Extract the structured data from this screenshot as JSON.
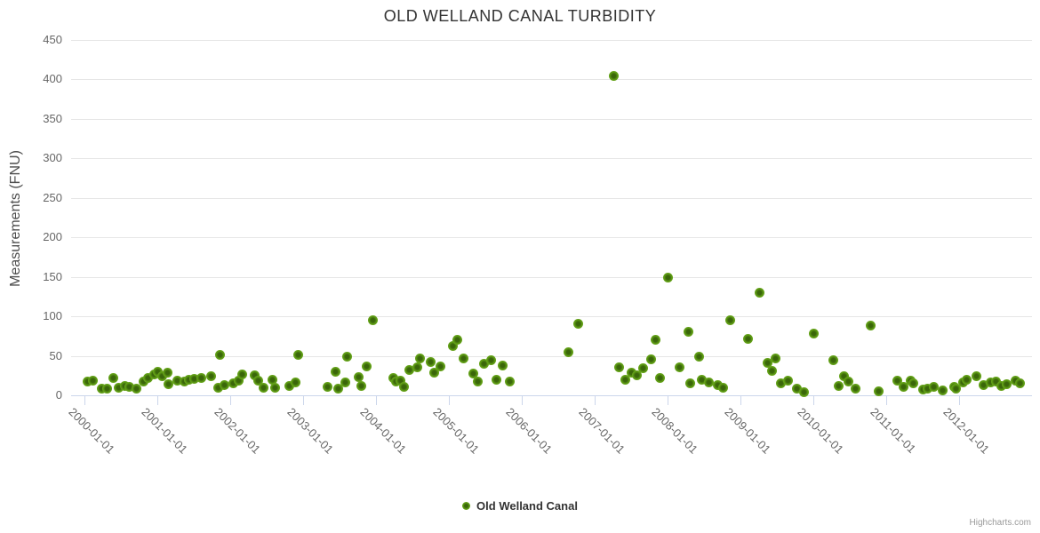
{
  "title": "OLD WELLAND CANAL TURBIDITY",
  "y_axis": {
    "title": "Measurements (FNU)",
    "ticks": [
      0,
      50,
      100,
      150,
      200,
      250,
      300,
      350,
      400,
      450
    ]
  },
  "x_axis": {
    "labels": [
      "2000-01-01",
      "2001-01-01",
      "2002-01-01",
      "2003-01-01",
      "2004-01-01",
      "2005-01-01",
      "2006-01-01",
      "2007-01-01",
      "2008-01-01",
      "2009-01-01",
      "2010-01-01",
      "2011-01-01",
      "2012-01-01"
    ]
  },
  "legend": {
    "label": "Old Welland Canal"
  },
  "credits": "Highcharts.com",
  "colors": {
    "point_outer": "#7dbb2b",
    "point_mid": "#5d9a14",
    "point_center": "#3a660a",
    "grid": "#e6e6e6",
    "axis": "#ccd6eb",
    "title_text": "#333333",
    "label_text": "#666666"
  },
  "chart_data": {
    "type": "scatter",
    "title": "OLD WELLAND CANAL TURBIDITY",
    "xlabel": "",
    "ylabel": "Measurements (FNU)",
    "ylim": [
      0,
      450
    ],
    "x_range": [
      "2000-01-01",
      "2013-01-01"
    ],
    "grid": "horizontal",
    "legend_position": "bottom-center",
    "series": [
      {
        "name": "Old Welland Canal",
        "points": [
          [
            "2000-01-15",
            17
          ],
          [
            "2000-02-15",
            19
          ],
          [
            "2000-03-25",
            8
          ],
          [
            "2000-04-25",
            8
          ],
          [
            "2000-05-25",
            22
          ],
          [
            "2000-06-20",
            10
          ],
          [
            "2000-07-20",
            12
          ],
          [
            "2000-08-15",
            11
          ],
          [
            "2000-09-20",
            9
          ],
          [
            "2000-10-25",
            18
          ],
          [
            "2000-11-15",
            22
          ],
          [
            "2000-12-15",
            27
          ],
          [
            "2001-01-05",
            30
          ],
          [
            "2001-01-25",
            24
          ],
          [
            "2001-02-20",
            29
          ],
          [
            "2001-02-26",
            14
          ],
          [
            "2001-04-10",
            19
          ],
          [
            "2001-05-15",
            18
          ],
          [
            "2001-06-05",
            20
          ],
          [
            "2001-07-01",
            21
          ],
          [
            "2001-08-10",
            22
          ],
          [
            "2001-09-25",
            24
          ],
          [
            "2001-11-01",
            10
          ],
          [
            "2001-11-10",
            51
          ],
          [
            "2001-12-01",
            13
          ],
          [
            "2002-01-15",
            15
          ],
          [
            "2002-02-15",
            19
          ],
          [
            "2002-03-01",
            27
          ],
          [
            "2002-05-01",
            25
          ],
          [
            "2002-05-20",
            19
          ],
          [
            "2002-06-15",
            10
          ],
          [
            "2002-08-01",
            20
          ],
          [
            "2002-08-15",
            10
          ],
          [
            "2002-10-25",
            12
          ],
          [
            "2002-11-25",
            16
          ],
          [
            "2002-12-05",
            51
          ],
          [
            "2003-05-01",
            11
          ],
          [
            "2003-06-10",
            30
          ],
          [
            "2003-06-25",
            9
          ],
          [
            "2003-08-01",
            16
          ],
          [
            "2003-08-10",
            49
          ],
          [
            "2003-10-05",
            23
          ],
          [
            "2003-10-20",
            12
          ],
          [
            "2003-11-15",
            37
          ],
          [
            "2003-12-15",
            95
          ],
          [
            "2004-03-25",
            22
          ],
          [
            "2004-04-10",
            17
          ],
          [
            "2004-05-01",
            19
          ],
          [
            "2004-05-20",
            11
          ],
          [
            "2004-06-15",
            32
          ],
          [
            "2004-07-25",
            36
          ],
          [
            "2004-08-10",
            47
          ],
          [
            "2004-10-01",
            42
          ],
          [
            "2004-10-20",
            29
          ],
          [
            "2004-11-20",
            37
          ],
          [
            "2005-01-20",
            62
          ],
          [
            "2005-02-15",
            70
          ],
          [
            "2005-03-15",
            47
          ],
          [
            "2005-05-01",
            28
          ],
          [
            "2005-05-25",
            18
          ],
          [
            "2005-06-25",
            40
          ],
          [
            "2005-08-01",
            45
          ],
          [
            "2005-08-25",
            20
          ],
          [
            "2005-09-25",
            38
          ],
          [
            "2005-11-01",
            18
          ],
          [
            "2006-08-20",
            55
          ],
          [
            "2006-10-10",
            91
          ],
          [
            "2007-04-05",
            405
          ],
          [
            "2007-05-01",
            35
          ],
          [
            "2007-06-01",
            20
          ],
          [
            "2007-07-01",
            29
          ],
          [
            "2007-08-01",
            25
          ],
          [
            "2007-09-01",
            34
          ],
          [
            "2007-10-10",
            46
          ],
          [
            "2007-11-01",
            70
          ],
          [
            "2007-11-25",
            22
          ],
          [
            "2008-01-01",
            149
          ],
          [
            "2008-03-01",
            35
          ],
          [
            "2008-04-15",
            81
          ],
          [
            "2008-04-25",
            15
          ],
          [
            "2008-06-05",
            49
          ],
          [
            "2008-06-20",
            20
          ],
          [
            "2008-07-25",
            16
          ],
          [
            "2008-09-10",
            13
          ],
          [
            "2008-10-05",
            10
          ],
          [
            "2008-11-10",
            95
          ],
          [
            "2009-02-10",
            72
          ],
          [
            "2009-04-05",
            130
          ],
          [
            "2009-05-15",
            41
          ],
          [
            "2009-06-05",
            31
          ],
          [
            "2009-06-25",
            47
          ],
          [
            "2009-07-20",
            15
          ],
          [
            "2009-08-25",
            19
          ],
          [
            "2009-10-10",
            9
          ],
          [
            "2009-11-15",
            4
          ],
          [
            "2010-01-05",
            78
          ],
          [
            "2010-04-10",
            45
          ],
          [
            "2010-05-05",
            12
          ],
          [
            "2010-06-01",
            24
          ],
          [
            "2010-06-25",
            18
          ],
          [
            "2010-08-01",
            9
          ],
          [
            "2010-10-15",
            88
          ],
          [
            "2010-11-25",
            5
          ],
          [
            "2011-02-25",
            19
          ],
          [
            "2011-03-25",
            11
          ],
          [
            "2011-05-01",
            19
          ],
          [
            "2011-05-15",
            15
          ],
          [
            "2011-07-01",
            7
          ],
          [
            "2011-07-25",
            8
          ],
          [
            "2011-08-25",
            11
          ],
          [
            "2011-10-10",
            6
          ],
          [
            "2011-12-05",
            11
          ],
          [
            "2011-12-15",
            9
          ],
          [
            "2012-01-20",
            16
          ],
          [
            "2012-02-10",
            20
          ],
          [
            "2012-03-25",
            24
          ],
          [
            "2012-05-01",
            13
          ],
          [
            "2012-06-05",
            16
          ],
          [
            "2012-07-01",
            18
          ],
          [
            "2012-08-01",
            12
          ],
          [
            "2012-08-25",
            14
          ],
          [
            "2012-10-10",
            19
          ],
          [
            "2012-11-01",
            15
          ]
        ]
      }
    ]
  }
}
